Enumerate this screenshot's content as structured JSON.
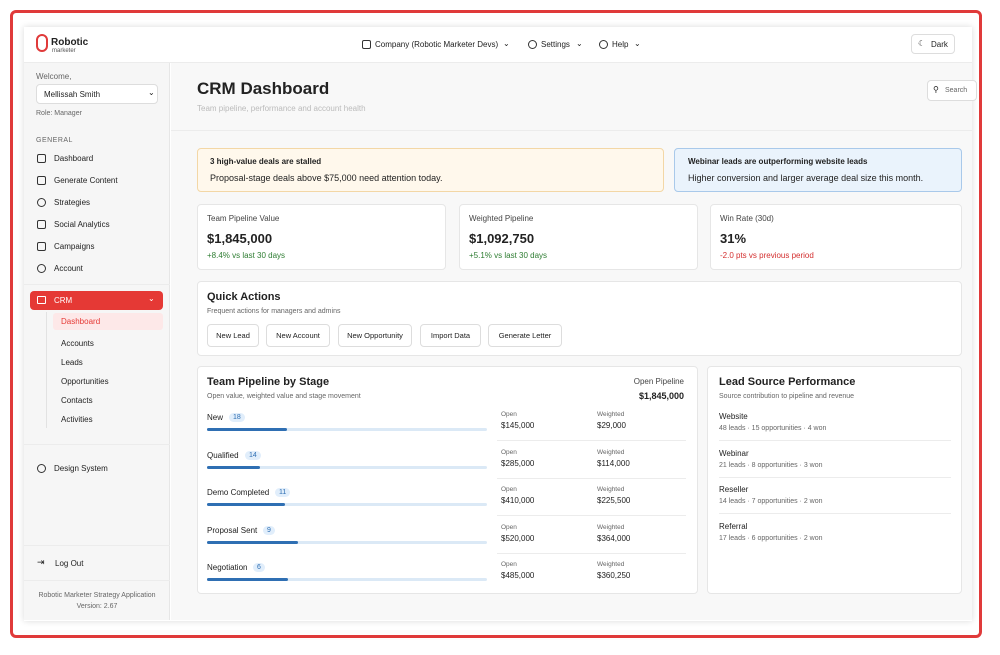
{
  "header": {
    "logo": "Robotic",
    "logo_sub": "marketer",
    "company": "Company (Robotic Marketer Devs)",
    "settings": "Settings",
    "help": "Help",
    "theme": "Dark"
  },
  "sidebar": {
    "welcome": "Welcome,",
    "user": "Mellissah Smith",
    "role": "Role: Manager",
    "section": "GENERAL",
    "nav": [
      "Dashboard",
      "Generate Content",
      "Strategies",
      "Social Analytics",
      "Campaigns",
      "Account"
    ],
    "crm": "CRM",
    "crm_items": [
      "Dashboard",
      "Accounts",
      "Leads",
      "Opportunities",
      "Contacts",
      "Activities"
    ],
    "design_system": "Design System",
    "logout": "Log Out",
    "footer": [
      "Robotic Marketer Strategy Application",
      "Version: 2.67"
    ]
  },
  "page": {
    "title": "CRM Dashboard",
    "subtitle": "Team pipeline, performance and account health",
    "search": "Search"
  },
  "alerts": [
    {
      "title": "3 high-value deals are stalled",
      "text": "Proposal-stage deals above $75,000 need attention today."
    },
    {
      "title": "Webinar leads are outperforming website leads",
      "text": "Higher conversion and larger average deal size this month."
    }
  ],
  "kpis": [
    {
      "label": "Team Pipeline Value",
      "value": "$1,845,000",
      "change": "+8.4% vs last 30 days"
    },
    {
      "label": "Weighted Pipeline",
      "value": "$1,092,750",
      "change": "+5.1% vs last 30 days"
    },
    {
      "label": "Win Rate (30d)",
      "value": "31%",
      "change": "-2.0 pts vs previous period"
    }
  ],
  "quick_actions": {
    "title": "Quick Actions",
    "subtitle": "Frequent actions for managers and admins",
    "buttons": [
      "New Lead",
      "New Account",
      "New Opportunity",
      "Import Data",
      "Generate Letter"
    ]
  },
  "pipeline": {
    "title": "Team Pipeline by Stage",
    "subtitle": "Open value, weighted value and stage movement",
    "total_label": "Open Pipeline",
    "total": "$1,845,000",
    "open_label": "Open",
    "weighted_label": "Weighted",
    "stages": [
      {
        "name": "New",
        "count": 18,
        "open": "$145,000",
        "weighted": "$29,000"
      },
      {
        "name": "Qualified",
        "count": 14,
        "open": "$285,000",
        "weighted": "$114,000"
      },
      {
        "name": "Demo Completed",
        "count": 11,
        "open": "$410,000",
        "weighted": "$225,500"
      },
      {
        "name": "Proposal Sent",
        "count": 9,
        "open": "$520,000",
        "weighted": "$364,000"
      },
      {
        "name": "Negotiation",
        "count": 6,
        "open": "$485,000",
        "weighted": "$360,250"
      }
    ]
  },
  "lead_sources": {
    "title": "Lead Source Performance",
    "subtitle": "Source contribution to pipeline and revenue",
    "sources": [
      {
        "name": "Website",
        "detail": "48 leads · 15 opportunities · 4 won"
      },
      {
        "name": "Webinar",
        "detail": "21 leads · 8 opportunities · 3 won"
      },
      {
        "name": "Reseller",
        "detail": "14 leads · 7 opportunities · 2 won"
      },
      {
        "name": "Referral",
        "detail": "17 leads · 6 opportunities · 2 won"
      }
    ]
  }
}
